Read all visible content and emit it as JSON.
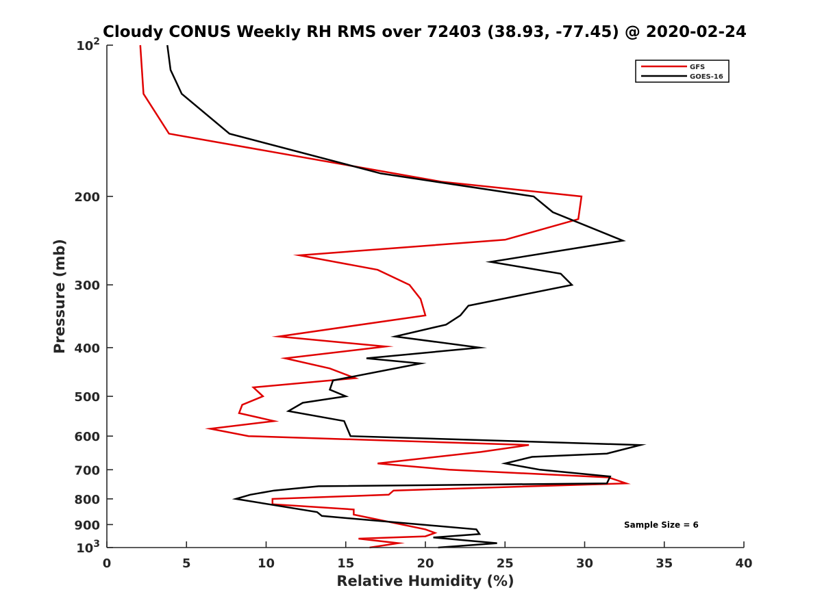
{
  "chart_data": {
    "type": "line",
    "title": "Cloudy CONUS Weekly RH RMS over 72403 (38.93, -77.45) @ 2020-02-24",
    "xlabel": "Relative Humidity (%)",
    "ylabel": "Pressure (mb)",
    "xlim": [
      0,
      40
    ],
    "ylim": [
      100,
      1000
    ],
    "y_scale": "log",
    "y_reversed": true,
    "grid": false,
    "legend_position": "top-right",
    "x_ticks": [
      {
        "value": 0,
        "label": "0"
      },
      {
        "value": 5,
        "label": "5"
      },
      {
        "value": 10,
        "label": "10"
      },
      {
        "value": 15,
        "label": "15"
      },
      {
        "value": 20,
        "label": "20"
      },
      {
        "value": 25,
        "label": "25"
      },
      {
        "value": 30,
        "label": "30"
      },
      {
        "value": 35,
        "label": "35"
      },
      {
        "value": 40,
        "label": "40"
      }
    ],
    "y_ticks": [
      {
        "value": 100,
        "label": "10",
        "sup": "2"
      },
      {
        "value": 200,
        "label": "200",
        "sup": ""
      },
      {
        "value": 300,
        "label": "300",
        "sup": ""
      },
      {
        "value": 400,
        "label": "400",
        "sup": ""
      },
      {
        "value": 500,
        "label": "500",
        "sup": ""
      },
      {
        "value": 600,
        "label": "600",
        "sup": ""
      },
      {
        "value": 700,
        "label": "700",
        "sup": ""
      },
      {
        "value": 800,
        "label": "800",
        "sup": ""
      },
      {
        "value": 900,
        "label": "900",
        "sup": ""
      },
      {
        "value": 1000,
        "label": "10",
        "sup": "3"
      }
    ],
    "annotation": "Sample Size = 6",
    "series": [
      {
        "name": "GFS",
        "color": "#e00000",
        "points": [
          [
            2.1,
            100
          ],
          [
            2.3,
            125
          ],
          [
            3.9,
            150
          ],
          [
            21.0,
            187
          ],
          [
            29.8,
            200
          ],
          [
            29.6,
            222
          ],
          [
            25.0,
            244
          ],
          [
            12.1,
            262
          ],
          [
            17.0,
            280
          ],
          [
            19.0,
            300
          ],
          [
            19.7,
            320
          ],
          [
            20.0,
            345
          ],
          [
            10.8,
            380
          ],
          [
            17.5,
            398
          ],
          [
            11.2,
            420
          ],
          [
            14.0,
            440
          ],
          [
            15.6,
            460
          ],
          [
            9.2,
            480
          ],
          [
            9.8,
            500
          ],
          [
            8.5,
            520
          ],
          [
            8.3,
            540
          ],
          [
            10.5,
            560
          ],
          [
            6.5,
            580
          ],
          [
            8.9,
            600
          ],
          [
            26.5,
            625
          ],
          [
            23.5,
            645
          ],
          [
            17.0,
            680
          ],
          [
            21.5,
            700
          ],
          [
            31.5,
            725
          ],
          [
            32.6,
            745
          ],
          [
            18.0,
            770
          ],
          [
            17.7,
            785
          ],
          [
            10.4,
            800
          ],
          [
            10.4,
            820
          ],
          [
            15.5,
            840
          ],
          [
            15.5,
            860
          ],
          [
            20.0,
            920
          ],
          [
            20.6,
            935
          ],
          [
            20.0,
            950
          ],
          [
            15.8,
            960
          ],
          [
            18.3,
            980
          ],
          [
            16.5,
            1000
          ]
        ]
      },
      {
        "name": "GOES-16",
        "color": "#000000",
        "points": [
          [
            3.8,
            100
          ],
          [
            4.0,
            112
          ],
          [
            4.7,
            125
          ],
          [
            7.7,
            150
          ],
          [
            17.2,
            180
          ],
          [
            26.8,
            200
          ],
          [
            28.0,
            215
          ],
          [
            32.4,
            245
          ],
          [
            24.1,
            270
          ],
          [
            28.5,
            285
          ],
          [
            29.2,
            300
          ],
          [
            22.7,
            330
          ],
          [
            22.2,
            345
          ],
          [
            21.3,
            360
          ],
          [
            18.1,
            380
          ],
          [
            23.4,
            400
          ],
          [
            16.3,
            420
          ],
          [
            19.7,
            430
          ],
          [
            14.2,
            465
          ],
          [
            14.0,
            485
          ],
          [
            15.0,
            500
          ],
          [
            12.3,
            515
          ],
          [
            11.4,
            535
          ],
          [
            14.9,
            560
          ],
          [
            15.1,
            580
          ],
          [
            15.3,
            600
          ],
          [
            33.5,
            625
          ],
          [
            31.4,
            650
          ],
          [
            26.7,
            660
          ],
          [
            25.0,
            680
          ],
          [
            27.2,
            700
          ],
          [
            31.6,
            722
          ],
          [
            31.4,
            745
          ],
          [
            13.3,
            755
          ],
          [
            10.5,
            770
          ],
          [
            9.0,
            785
          ],
          [
            8.1,
            800
          ],
          [
            13.2,
            850
          ],
          [
            13.5,
            865
          ],
          [
            23.2,
            920
          ],
          [
            23.4,
            940
          ],
          [
            20.5,
            955
          ],
          [
            24.5,
            980
          ],
          [
            20.8,
            1000
          ]
        ]
      }
    ]
  }
}
